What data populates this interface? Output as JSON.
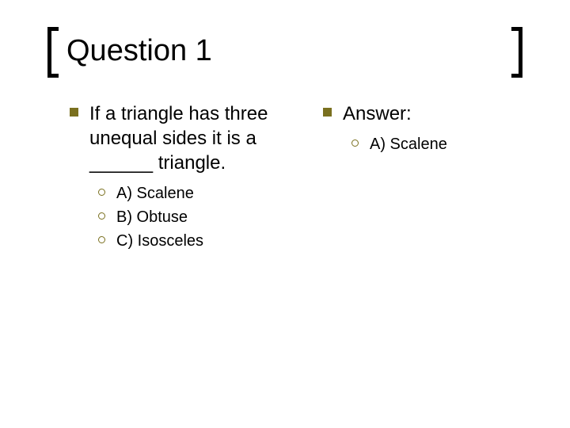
{
  "title": "Question 1",
  "colors": {
    "bullet": "#7a701f",
    "text": "#000000",
    "background": "#ffffff"
  },
  "typography": {
    "title_fontsize": 38,
    "body_fontsize": 24,
    "sub_fontsize": 20,
    "font_family": "Arial"
  },
  "left": {
    "question": "If a triangle has three unequal sides it is a ______ triangle.",
    "options": [
      "A) Scalene",
      "B) Obtuse",
      "C) Isosceles"
    ]
  },
  "right": {
    "label": "Answer:",
    "answer": "A) Scalene"
  }
}
